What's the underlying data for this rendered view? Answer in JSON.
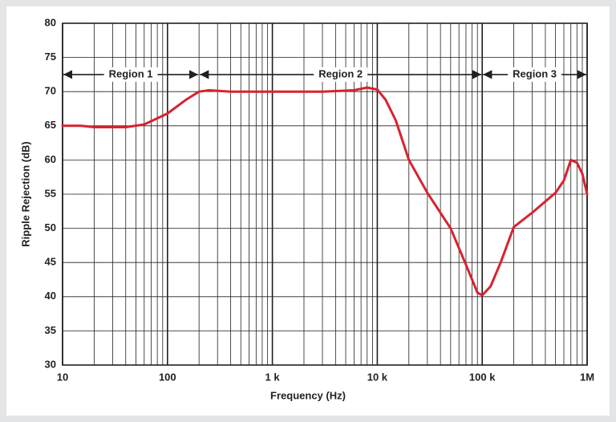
{
  "chart_data": {
    "type": "line",
    "x_label": "Frequency (Hz)",
    "y_label": "Ripple Rejection (dB)",
    "x_log": true,
    "grid": true,
    "xlim": [
      10,
      1000000
    ],
    "ylim": [
      30,
      80
    ],
    "xticks": [
      10,
      100,
      {
        "value": 1000,
        "label": "1 k"
      },
      {
        "value": 10000,
        "label": "10 k"
      },
      {
        "value": 100000,
        "label": "100 k"
      },
      {
        "value": 1000000,
        "label": "1M"
      }
    ],
    "minor_xticks": [
      20,
      30,
      40,
      50,
      60,
      70,
      80,
      90,
      200,
      300,
      400,
      500,
      600,
      700,
      800,
      900,
      2000,
      3000,
      4000,
      5000,
      6000,
      7000,
      8000,
      9000,
      20000,
      30000,
      40000,
      50000,
      60000,
      70000,
      80000,
      90000,
      200000,
      300000,
      400000,
      500000,
      600000,
      700000,
      800000,
      900000
    ],
    "yticks": [
      30,
      35,
      40,
      45,
      50,
      55,
      60,
      65,
      70,
      75,
      80
    ],
    "regions": [
      {
        "label": "Region 1",
        "from": 10,
        "to": 200
      },
      {
        "label": "Region 2",
        "from": 200,
        "to": 100000
      },
      {
        "label": "Region 3",
        "from": 100000,
        "to": 1000000
      }
    ],
    "region_y": 72.5,
    "series": [
      {
        "name": "Ripple Rejection",
        "color": "#d7232f",
        "x": [
          10,
          15,
          20,
          40,
          60,
          100,
          150,
          200,
          250,
          400,
          1000,
          3000,
          6000,
          8000,
          10000,
          12000,
          15000,
          20000,
          30000,
          50000,
          70000,
          90000,
          100000,
          120000,
          150000,
          200000,
          300000,
          500000,
          600000,
          700000,
          800000,
          900000,
          1000000
        ],
        "values": [
          65,
          65,
          64.8,
          64.8,
          65.2,
          66.8,
          68.8,
          70,
          70.2,
          70,
          70,
          70,
          70.2,
          70.6,
          70.3,
          68.8,
          65.8,
          60,
          55.2,
          50,
          44.7,
          40.6,
          40.2,
          41.5,
          45,
          50.2,
          52.3,
          55.2,
          57,
          60,
          59.6,
          58,
          55
        ]
      }
    ]
  }
}
